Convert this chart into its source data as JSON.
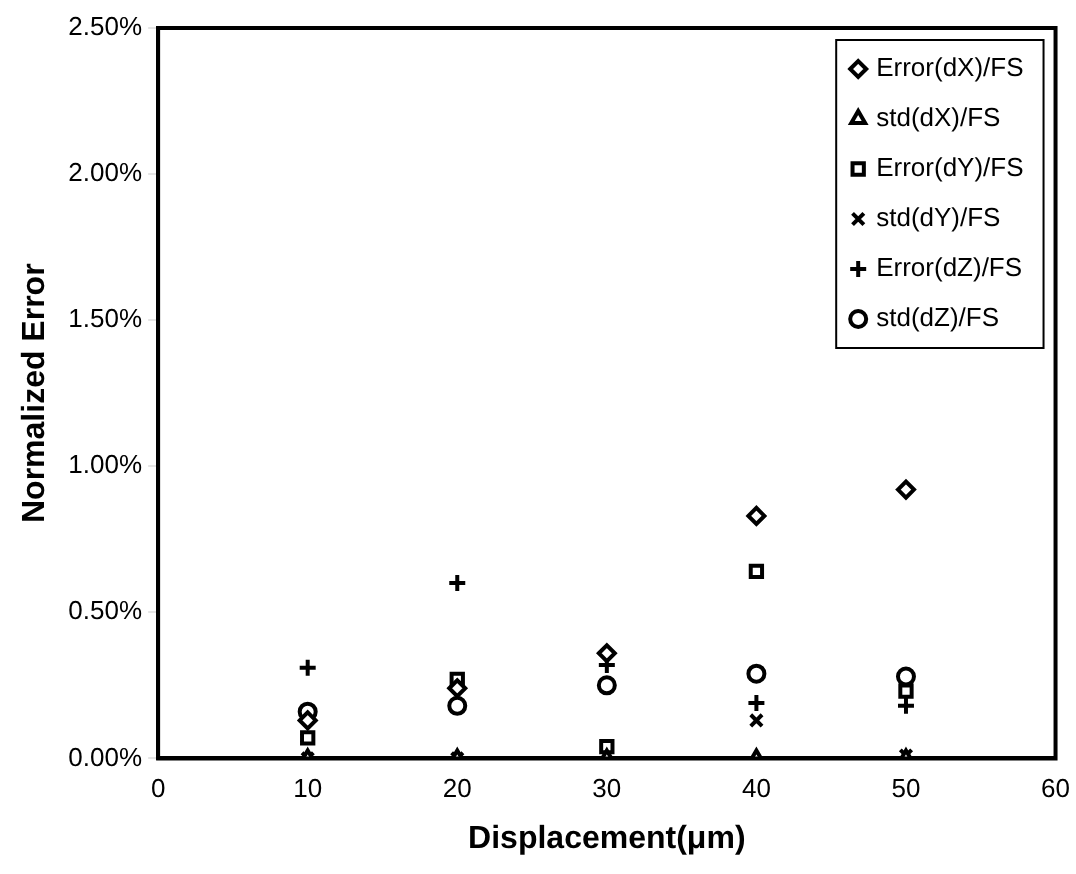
{
  "chart_data": {
    "type": "scatter",
    "xlabel": "Displacement(μm)",
    "ylabel": "Normalized Error",
    "x": [
      10,
      20,
      30,
      40,
      50
    ],
    "series": [
      {
        "name": "Error(dX)/FS",
        "color": "#000000",
        "marker": "diamond",
        "values": [
          0.13,
          0.24,
          0.36,
          0.83,
          0.92
        ]
      },
      {
        "name": "std(dX)/FS",
        "color": "#000000",
        "marker": "triangle",
        "values": [
          0,
          0,
          0,
          0,
          0
        ]
      },
      {
        "name": "Error(dY)/FS",
        "color": "#000000",
        "marker": "square",
        "values": [
          0.07,
          0.27,
          0.04,
          0.64,
          0.23
        ]
      },
      {
        "name": "std(dY)/FS",
        "color": "#000000",
        "marker": "cross",
        "values": [
          0,
          0,
          null,
          0.13,
          0.01
        ]
      },
      {
        "name": "Error(dZ)/FS",
        "color": "#000000",
        "marker": "plus",
        "values": [
          0.31,
          0.6,
          0.32,
          0.19,
          0.18
        ]
      },
      {
        "name": "std(dZ)/FS",
        "color": "#000000",
        "marker": "circle",
        "values": [
          0.16,
          0.18,
          0.25,
          0.29,
          0.28
        ]
      }
    ],
    "xlim": [
      0,
      60
    ],
    "xticks": [
      0,
      10,
      20,
      30,
      40,
      50,
      60
    ],
    "ylim": [
      0,
      2.5
    ],
    "yticks": [
      {
        "value": 0,
        "label": "0.00%"
      },
      {
        "value": 0.5,
        "label": "0.50%"
      },
      {
        "value": 1,
        "label": "1.00%"
      },
      {
        "value": 1.5,
        "label": "1.50%"
      },
      {
        "value": 2,
        "label": "2.00%"
      },
      {
        "value": 2.5,
        "label": "2.50%"
      }
    ],
    "grid": false,
    "legend": "top right"
  }
}
